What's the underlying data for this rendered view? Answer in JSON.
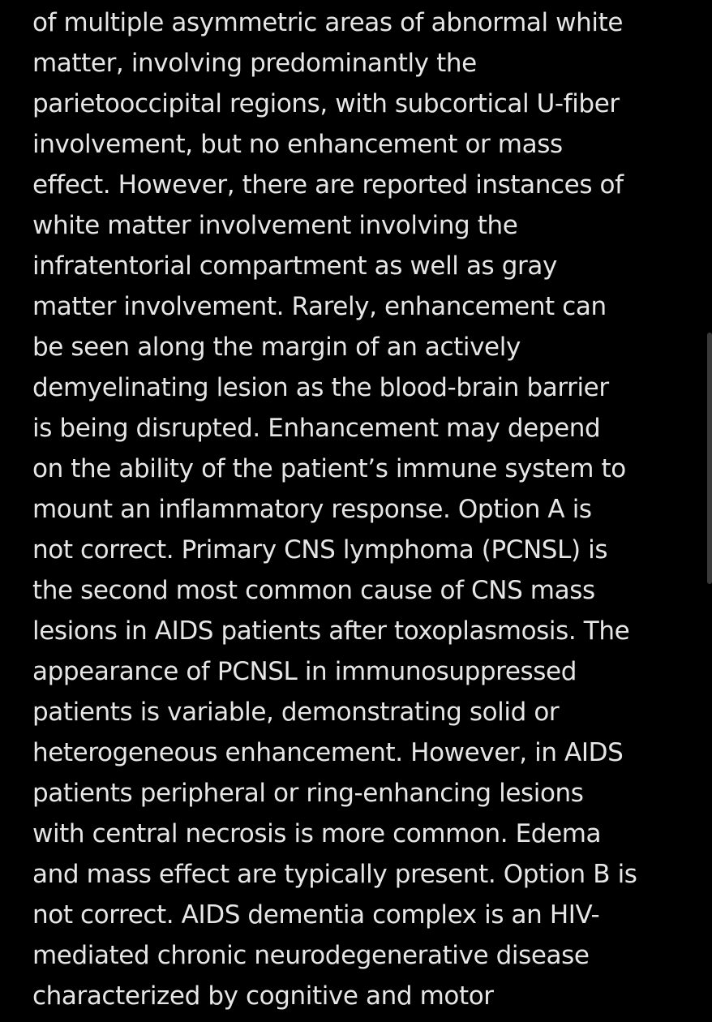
{
  "article": {
    "lines": [
      "of multiple asymmetric areas of abnormal white",
      "matter, involving predominantly the",
      "parietooccipital regions, with subcortical U-fiber",
      "involvement, but no enhancement or mass",
      "effect. However, there are reported instances of",
      "white matter involvement involving the",
      "infratentorial compartment as well as gray",
      "matter involvement. Rarely, enhancement can",
      "be seen along the margin of an actively",
      "demyelinating lesion as the blood-brain barrier",
      "is being disrupted. Enhancement may depend",
      "on the ability of the patient’s immune system to",
      "mount an inflammatory response. Option A is",
      "not correct. Primary CNS lymphoma (PCNSL) is",
      "the second most common cause of CNS mass",
      "lesions in AIDS patients after toxoplasmosis. The",
      "appearance of PCNSL in immunosuppressed",
      "patients is variable, demonstrating solid or",
      "heterogeneous enhancement. However, in AIDS",
      "patients peripheral or ring-enhancing lesions",
      "with central necrosis is more common. Edema",
      "and mass effect are typically present. Option B is",
      "not correct. AIDS dementia complex is an HIV-",
      "mediated chronic neurodegenerative disease",
      "characterized by cognitive and motor"
    ]
  },
  "colors": {
    "background": "#000000",
    "text": "#e6e6e6",
    "scrollbar": "#3a3a3a"
  }
}
